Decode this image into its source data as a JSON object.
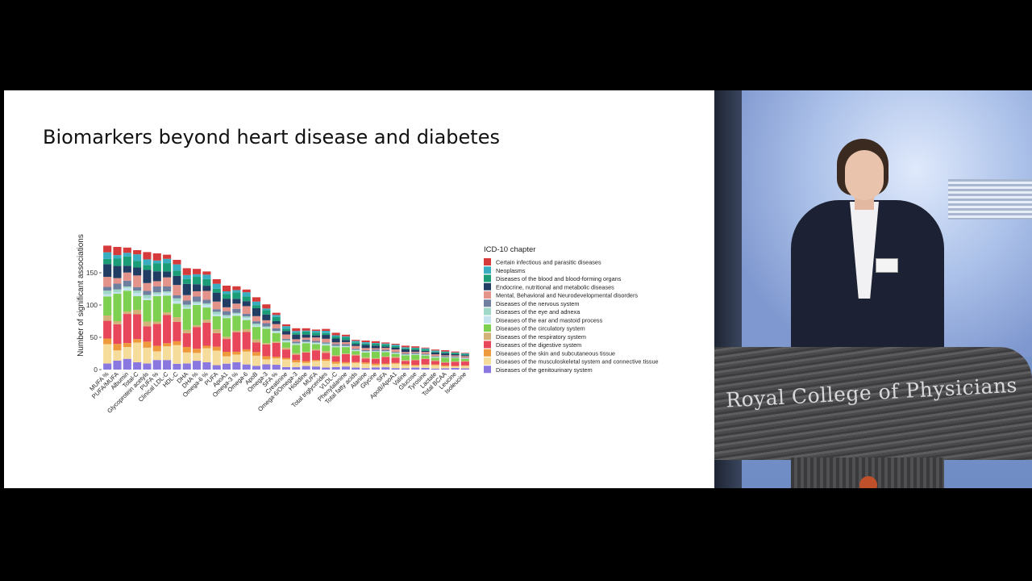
{
  "slide": {
    "title": "Biomarkers beyond heart disease and diabetes"
  },
  "camera": {
    "podium_text": "Royal College of Physicians"
  },
  "chart_data": {
    "type": "bar",
    "stacked": true,
    "ylabel": "Number of significant associations",
    "xlabel": "",
    "ylim": [
      0,
      200
    ],
    "yticks": [
      0,
      50,
      100,
      150
    ],
    "legend_title": "ICD-10 chapter",
    "legend_position": "right",
    "categories": [
      "MUFA %",
      "PUFA/MUFA",
      "Albumin",
      "Total-C",
      "Glycoprotein acetyls",
      "PUFA %",
      "Clinical LDL-C",
      "HDL-C",
      "DHA",
      "DHA %",
      "Omega-6 %",
      "PUFA",
      "ApoA1",
      "Omega-3 %",
      "Omega-6",
      "ApoB",
      "Omega-3",
      "SFA %",
      "Creatinine",
      "Omega-6/Omega-3",
      "Histidine",
      "MUFA",
      "Total triglycerides",
      "VLDL-C",
      "Phenylalanine",
      "Total fatty acids",
      "Alanine",
      "Glycine",
      "SFA",
      "ApoB/ApoA1",
      "Valine",
      "Glucose",
      "Tyrosine",
      "Lactate",
      "Total BCAA",
      "Leucine",
      "Isoleucine"
    ],
    "totals": [
      192,
      190,
      189,
      185,
      182,
      180,
      178,
      170,
      157,
      156,
      152,
      140,
      130,
      129,
      124,
      112,
      101,
      88,
      70,
      64,
      64,
      62,
      63,
      57,
      54,
      46,
      45,
      44,
      42,
      40,
      37,
      36,
      34,
      31,
      30,
      28,
      26
    ],
    "series": [
      {
        "name": "Certain infectious and parasitic diseases",
        "color": "#d63a3a"
      },
      {
        "name": "Neoplasms",
        "color": "#3aaec1"
      },
      {
        "name": "Diseases of the blood and blood-forming organs",
        "color": "#1b9e77"
      },
      {
        "name": "Endocrine, nutritional and metabolic diseases",
        "color": "#223d63"
      },
      {
        "name": "Mental, Behavioral and Neurodevelopmental disorders",
        "color": "#e3938a"
      },
      {
        "name": "Diseases of the nervous system",
        "color": "#6f7fa0"
      },
      {
        "name": "Diseases of the eye and adnexa",
        "color": "#9fd8c6"
      },
      {
        "name": "Diseases of the ear and mastoid process",
        "color": "#c5e3ef"
      },
      {
        "name": "Diseases of the circulatory system",
        "color": "#7ed050"
      },
      {
        "name": "Diseases of the respiratory system",
        "color": "#d3b27a"
      },
      {
        "name": "Diseases of the digestive system",
        "color": "#e8475b"
      },
      {
        "name": "Diseases of the skin and subcutaneous tissue",
        "color": "#ee9a3c"
      },
      {
        "name": "Diseases of the musculoskeletal system and connective tissue",
        "color": "#f6dc9a"
      },
      {
        "name": "Diseases of the genitourinary system",
        "color": "#8a78e0"
      }
    ],
    "stack_order_bottom_to_top": [
      13,
      12,
      11,
      10,
      9,
      8,
      7,
      6,
      5,
      4,
      3,
      2,
      1,
      0
    ],
    "proportions_by_series": [
      0.05,
      0.04,
      0.06,
      0.08,
      0.07,
      0.04,
      0.02,
      0.02,
      0.17,
      0.03,
      0.19,
      0.04,
      0.12,
      0.07
    ]
  }
}
